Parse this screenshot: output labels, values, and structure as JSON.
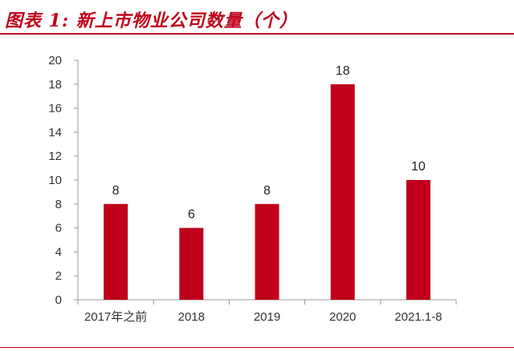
{
  "caption": "图表 1: 新上市物业公司数量（个）",
  "chart_data": {
    "type": "bar",
    "title": "",
    "xlabel": "",
    "ylabel": "",
    "categories": [
      "2017年之前",
      "2018",
      "2019",
      "2020",
      "2021.1-8"
    ],
    "values": [
      8,
      6,
      8,
      18,
      10
    ],
    "data_labels": [
      "8",
      "6",
      "8",
      "18",
      "10"
    ],
    "ylim": [
      0,
      20
    ],
    "yticks": [
      "0",
      "2",
      "4",
      "6",
      "8",
      "10",
      "12",
      "14",
      "16",
      "18",
      "20"
    ],
    "grid": false,
    "legend": "none",
    "bar_color": "#c0001a",
    "axis_color": "#999999"
  }
}
